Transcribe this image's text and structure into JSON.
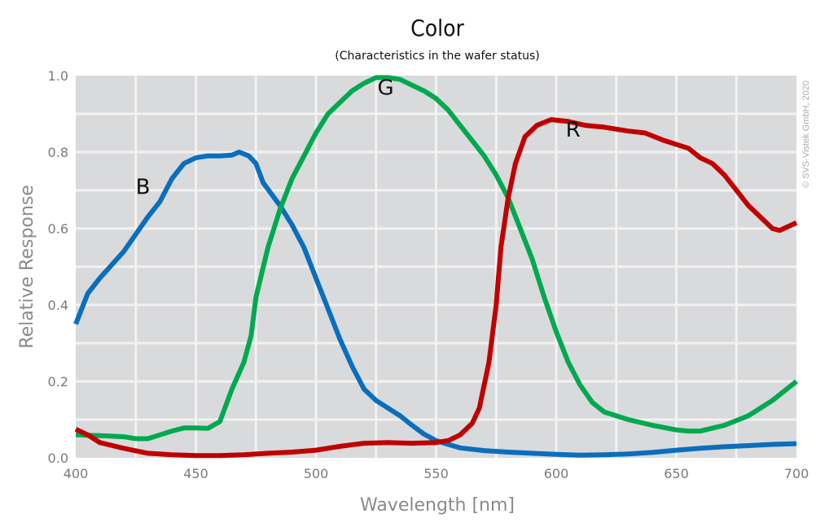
{
  "chart_data": {
    "type": "line",
    "title": "Color",
    "subtitle": "(Characteristics in the wafer status)",
    "xlabel": "Wavelength [nm]",
    "ylabel": "Relative Response",
    "xlim": [
      400,
      700
    ],
    "ylim": [
      0,
      1.0
    ],
    "xticks": [
      "400",
      "450",
      "500",
      "550",
      "600",
      "650",
      "700"
    ],
    "yticks": [
      "0.0",
      "0.2",
      "0.4",
      "0.6",
      "0.8",
      "1.0"
    ],
    "grid": true,
    "copyright": "© SVS-Vistek GmbH, 2020",
    "series": [
      {
        "name": "B",
        "color": "#0a6ebd",
        "label_at": [
          428,
          0.69
        ],
        "points": [
          [
            400,
            0.35
          ],
          [
            405,
            0.43
          ],
          [
            410,
            0.47
          ],
          [
            420,
            0.54
          ],
          [
            430,
            0.63
          ],
          [
            435,
            0.67
          ],
          [
            440,
            0.73
          ],
          [
            445,
            0.77
          ],
          [
            450,
            0.785
          ],
          [
            455,
            0.79
          ],
          [
            460,
            0.79
          ],
          [
            465,
            0.792
          ],
          [
            468,
            0.8
          ],
          [
            472,
            0.79
          ],
          [
            475,
            0.77
          ],
          [
            478,
            0.72
          ],
          [
            485,
            0.66
          ],
          [
            490,
            0.61
          ],
          [
            495,
            0.55
          ],
          [
            500,
            0.47
          ],
          [
            505,
            0.39
          ],
          [
            510,
            0.31
          ],
          [
            515,
            0.24
          ],
          [
            520,
            0.18
          ],
          [
            525,
            0.15
          ],
          [
            530,
            0.13
          ],
          [
            535,
            0.11
          ],
          [
            540,
            0.085
          ],
          [
            545,
            0.062
          ],
          [
            550,
            0.045
          ],
          [
            555,
            0.035
          ],
          [
            560,
            0.026
          ],
          [
            570,
            0.019
          ],
          [
            580,
            0.015
          ],
          [
            590,
            0.012
          ],
          [
            600,
            0.009
          ],
          [
            610,
            0.007
          ],
          [
            620,
            0.008
          ],
          [
            630,
            0.01
          ],
          [
            640,
            0.014
          ],
          [
            650,
            0.02
          ],
          [
            660,
            0.025
          ],
          [
            670,
            0.029
          ],
          [
            680,
            0.032
          ],
          [
            690,
            0.035
          ],
          [
            700,
            0.037
          ]
        ]
      },
      {
        "name": "G",
        "color": "#00a94f",
        "label_at": [
          529,
          0.95
        ],
        "points": [
          [
            400,
            0.06
          ],
          [
            410,
            0.058
          ],
          [
            420,
            0.055
          ],
          [
            425,
            0.05
          ],
          [
            430,
            0.05
          ],
          [
            435,
            0.06
          ],
          [
            440,
            0.07
          ],
          [
            445,
            0.078
          ],
          [
            450,
            0.078
          ],
          [
            455,
            0.077
          ],
          [
            460,
            0.095
          ],
          [
            465,
            0.18
          ],
          [
            470,
            0.25
          ],
          [
            473,
            0.32
          ],
          [
            475,
            0.42
          ],
          [
            480,
            0.55
          ],
          [
            485,
            0.65
          ],
          [
            490,
            0.73
          ],
          [
            495,
            0.79
          ],
          [
            500,
            0.85
          ],
          [
            505,
            0.9
          ],
          [
            510,
            0.93
          ],
          [
            515,
            0.96
          ],
          [
            520,
            0.98
          ],
          [
            525,
            0.995
          ],
          [
            530,
            0.995
          ],
          [
            535,
            0.99
          ],
          [
            540,
            0.975
          ],
          [
            545,
            0.96
          ],
          [
            550,
            0.94
          ],
          [
            555,
            0.91
          ],
          [
            560,
            0.87
          ],
          [
            565,
            0.83
          ],
          [
            570,
            0.79
          ],
          [
            575,
            0.74
          ],
          [
            580,
            0.68
          ],
          [
            585,
            0.6
          ],
          [
            590,
            0.52
          ],
          [
            595,
            0.42
          ],
          [
            600,
            0.33
          ],
          [
            605,
            0.25
          ],
          [
            610,
            0.19
          ],
          [
            615,
            0.145
          ],
          [
            620,
            0.12
          ],
          [
            630,
            0.1
          ],
          [
            640,
            0.085
          ],
          [
            650,
            0.073
          ],
          [
            655,
            0.07
          ],
          [
            660,
            0.07
          ],
          [
            670,
            0.085
          ],
          [
            680,
            0.11
          ],
          [
            690,
            0.15
          ],
          [
            700,
            0.2
          ]
        ]
      },
      {
        "name": "R",
        "color": "#c00000",
        "label_at": [
          607,
          0.84
        ],
        "points": [
          [
            400,
            0.075
          ],
          [
            405,
            0.06
          ],
          [
            410,
            0.04
          ],
          [
            420,
            0.025
          ],
          [
            430,
            0.012
          ],
          [
            440,
            0.008
          ],
          [
            450,
            0.006
          ],
          [
            460,
            0.006
          ],
          [
            470,
            0.008
          ],
          [
            480,
            0.012
          ],
          [
            490,
            0.015
          ],
          [
            500,
            0.02
          ],
          [
            510,
            0.03
          ],
          [
            520,
            0.038
          ],
          [
            530,
            0.04
          ],
          [
            540,
            0.038
          ],
          [
            550,
            0.04
          ],
          [
            555,
            0.045
          ],
          [
            560,
            0.06
          ],
          [
            565,
            0.09
          ],
          [
            568,
            0.13
          ],
          [
            572,
            0.25
          ],
          [
            575,
            0.4
          ],
          [
            577,
            0.55
          ],
          [
            580,
            0.68
          ],
          [
            583,
            0.77
          ],
          [
            587,
            0.84
          ],
          [
            592,
            0.87
          ],
          [
            598,
            0.885
          ],
          [
            605,
            0.88
          ],
          [
            612,
            0.87
          ],
          [
            620,
            0.865
          ],
          [
            630,
            0.855
          ],
          [
            637,
            0.85
          ],
          [
            645,
            0.83
          ],
          [
            655,
            0.81
          ],
          [
            660,
            0.785
          ],
          [
            665,
            0.77
          ],
          [
            670,
            0.74
          ],
          [
            675,
            0.7
          ],
          [
            680,
            0.66
          ],
          [
            685,
            0.63
          ],
          [
            690,
            0.6
          ],
          [
            693,
            0.595
          ],
          [
            700,
            0.615
          ]
        ]
      }
    ]
  }
}
